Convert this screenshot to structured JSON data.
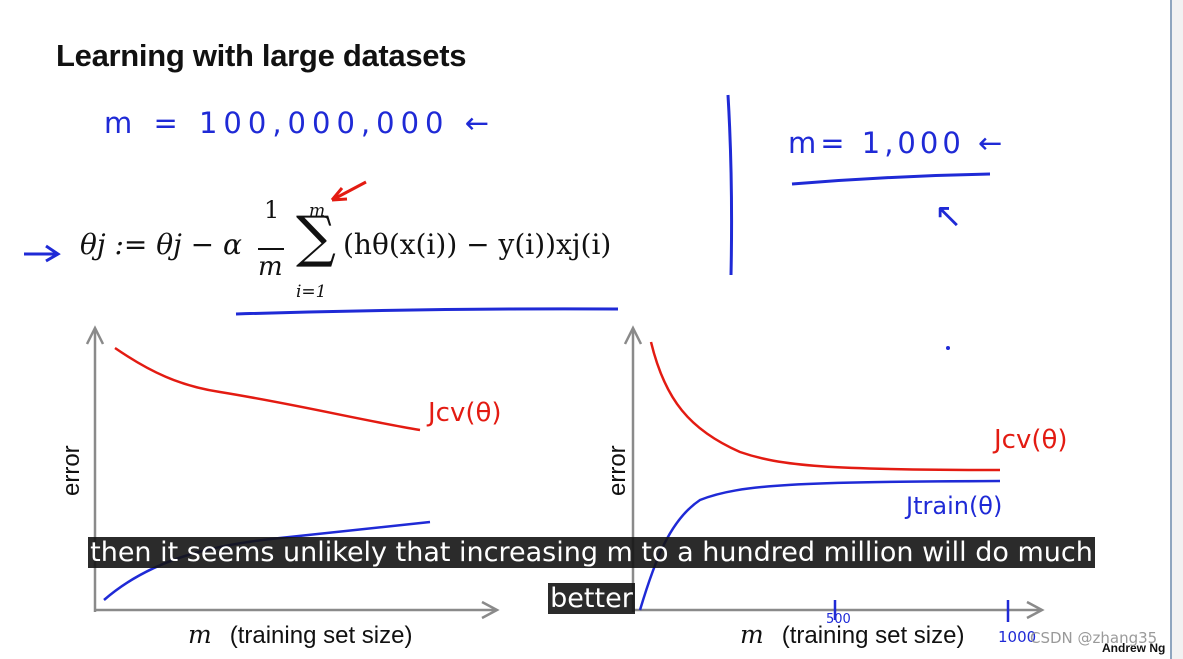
{
  "slide": {
    "title": "Learning with large datasets",
    "author": "Andrew Ng"
  },
  "annotations": {
    "m_large": "m = 100,000,000 ←",
    "m_small": "m= 1,000 ←",
    "arrow_up": "↖"
  },
  "formula": {
    "lhs": "θj := θj − α",
    "frac_num": "1",
    "frac_den": "m",
    "sigma": "∑",
    "sigma_upper": "m",
    "sigma_lower": "i=1",
    "rhs": "(hθ(x(i)) − y(i))xj(i)",
    "pointer": "→"
  },
  "plots": {
    "left": {
      "ylabel": "error",
      "xlabel_var": "m",
      "xlabel_text": "(training set size)",
      "jcv_label": "Jcv(θ)"
    },
    "right": {
      "ylabel": "error",
      "xlabel_var": "m",
      "xlabel_text": "(training set size)",
      "jcv_label": "Jcv(θ)",
      "jtrain_label": "Jtrain(θ)",
      "tick_500": "500",
      "tick_1000": "1000"
    }
  },
  "subtitles": {
    "line1": "then it seems unlikely that increasing m to a hundred million will do much",
    "line2": "better"
  },
  "watermark": "CSDN @zhang35",
  "colors": {
    "ink_blue": "#1f2ad6",
    "ink_red": "#e31b12",
    "axis": "#8a8a8a"
  }
}
